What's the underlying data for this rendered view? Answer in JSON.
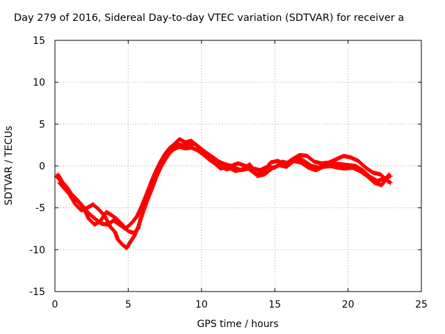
{
  "chart_data": {
    "type": "scatter",
    "title": "Day 279 of 2016, Sidereal Day-to-day VTEC variation (SDTVAR) for receiver a",
    "xlabel": "GPS time / hours",
    "ylabel": "SDTVAR / TECUs",
    "xlim": [
      0,
      25
    ],
    "ylim": [
      -15,
      15
    ],
    "xticks": [
      "0",
      "5",
      "10",
      "15",
      "20",
      "25"
    ],
    "yticks": [
      "15",
      "10",
      "5",
      "0",
      "-5",
      "-10",
      "-15"
    ],
    "xtick_values": [
      0,
      5,
      10,
      15,
      20,
      25
    ],
    "ytick_values": [
      15,
      10,
      5,
      0,
      -5,
      -10,
      -15
    ],
    "grid": true,
    "marker_color": "#ff0000",
    "series": [
      {
        "points": [
          [
            0.1,
            -1.2
          ],
          [
            0.3,
            -1.6
          ],
          [
            0.6,
            -2.3
          ],
          [
            0.9,
            -3.0
          ],
          [
            1.2,
            -3.6
          ],
          [
            1.6,
            -4.3
          ],
          [
            2.0,
            -5.1
          ],
          [
            2.4,
            -5.8
          ],
          [
            2.8,
            -6.4
          ],
          [
            3.2,
            -6.9
          ],
          [
            3.6,
            -7.0
          ],
          [
            4.0,
            -6.5
          ],
          [
            4.4,
            -7.0
          ],
          [
            4.8,
            -7.5
          ],
          [
            5.0,
            -7.2
          ],
          [
            5.3,
            -6.7
          ],
          [
            5.6,
            -6.0
          ],
          [
            5.9,
            -4.9
          ],
          [
            6.2,
            -3.6
          ],
          [
            6.5,
            -2.3
          ],
          [
            6.8,
            -1.0
          ],
          [
            7.1,
            0.1
          ],
          [
            7.4,
            1.0
          ],
          [
            7.7,
            1.8
          ],
          [
            8.0,
            2.3
          ],
          [
            8.4,
            2.6
          ],
          [
            8.8,
            2.4
          ],
          [
            9.2,
            2.7
          ],
          [
            9.6,
            2.6
          ],
          [
            10.0,
            2.0
          ],
          [
            10.4,
            1.5
          ],
          [
            10.8,
            1.0
          ],
          [
            11.2,
            0.5
          ],
          [
            11.6,
            0.2
          ],
          [
            12.0,
            0.0
          ],
          [
            12.5,
            0.3
          ],
          [
            13.0,
            0.0
          ],
          [
            13.5,
            -0.3
          ],
          [
            14.0,
            -0.5
          ],
          [
            14.5,
            -0.1
          ],
          [
            15.0,
            -0.2
          ],
          [
            15.5,
            0.5
          ],
          [
            16.0,
            0.3
          ],
          [
            16.5,
            1.0
          ],
          [
            17.0,
            0.6
          ],
          [
            17.5,
            0.0
          ],
          [
            18.0,
            -0.2
          ],
          [
            18.5,
            0.1
          ],
          [
            19.0,
            0.3
          ],
          [
            19.5,
            0.2
          ],
          [
            20.0,
            0.1
          ],
          [
            20.5,
            0.0
          ],
          [
            21.0,
            -0.5
          ],
          [
            21.5,
            -1.3
          ],
          [
            22.0,
            -1.8
          ],
          [
            22.5,
            -1.5
          ],
          [
            22.9,
            -1.2
          ]
        ]
      },
      {
        "points": [
          [
            0.2,
            -1.0
          ],
          [
            0.5,
            -1.9
          ],
          [
            0.8,
            -2.5
          ],
          [
            1.1,
            -3.3
          ],
          [
            1.5,
            -4.0
          ],
          [
            1.9,
            -4.8
          ],
          [
            2.3,
            -6.3
          ],
          [
            2.7,
            -7.0
          ],
          [
            3.1,
            -6.6
          ],
          [
            3.5,
            -5.5
          ],
          [
            3.8,
            -5.8
          ],
          [
            4.2,
            -6.3
          ],
          [
            4.6,
            -7.0
          ],
          [
            5.0,
            -7.8
          ],
          [
            5.4,
            -8.0
          ],
          [
            5.7,
            -7.4
          ],
          [
            6.0,
            -4.8
          ],
          [
            6.3,
            -3.2
          ],
          [
            6.6,
            -1.8
          ],
          [
            6.9,
            -0.6
          ],
          [
            7.2,
            0.5
          ],
          [
            7.5,
            1.4
          ],
          [
            7.8,
            2.1
          ],
          [
            8.2,
            2.7
          ],
          [
            8.5,
            3.2
          ],
          [
            8.9,
            2.8
          ],
          [
            9.3,
            3.0
          ],
          [
            9.7,
            2.4
          ],
          [
            10.1,
            1.7
          ],
          [
            10.5,
            1.2
          ],
          [
            10.9,
            0.6
          ],
          [
            11.3,
            0.0
          ],
          [
            11.7,
            -0.4
          ],
          [
            12.2,
            -0.2
          ],
          [
            12.7,
            -0.5
          ],
          [
            13.2,
            -0.3
          ],
          [
            13.7,
            -1.0
          ],
          [
            14.2,
            -0.8
          ],
          [
            14.7,
            0.4
          ],
          [
            15.2,
            0.6
          ],
          [
            15.7,
            0.2
          ],
          [
            16.2,
            0.8
          ],
          [
            16.7,
            1.3
          ],
          [
            17.2,
            1.2
          ],
          [
            17.7,
            0.5
          ],
          [
            18.2,
            0.3
          ],
          [
            18.7,
            0.4
          ],
          [
            19.2,
            0.8
          ],
          [
            19.7,
            1.2
          ],
          [
            20.2,
            1.0
          ],
          [
            20.7,
            0.6
          ],
          [
            21.2,
            -0.2
          ],
          [
            21.7,
            -0.8
          ],
          [
            22.2,
            -1.0
          ],
          [
            22.7,
            -1.8
          ],
          [
            22.9,
            -2.0
          ]
        ]
      },
      {
        "points": [
          [
            0.3,
            -2.0
          ],
          [
            0.7,
            -2.8
          ],
          [
            1.0,
            -3.4
          ],
          [
            1.4,
            -4.6
          ],
          [
            1.8,
            -5.3
          ],
          [
            2.2,
            -5.0
          ],
          [
            2.6,
            -4.6
          ],
          [
            3.0,
            -5.2
          ],
          [
            3.4,
            -6.0
          ],
          [
            3.8,
            -7.3
          ],
          [
            4.1,
            -7.9
          ],
          [
            4.3,
            -8.8
          ],
          [
            4.6,
            -9.4
          ],
          [
            4.9,
            -9.8
          ],
          [
            5.1,
            -9.2
          ],
          [
            5.4,
            -8.4
          ],
          [
            5.7,
            -7.2
          ],
          [
            6.0,
            -5.6
          ],
          [
            6.3,
            -4.1
          ],
          [
            6.6,
            -2.8
          ],
          [
            6.9,
            -1.4
          ],
          [
            7.2,
            -0.2
          ],
          [
            7.5,
            0.7
          ],
          [
            7.8,
            1.5
          ],
          [
            8.1,
            2.0
          ],
          [
            8.5,
            2.3
          ],
          [
            8.9,
            2.1
          ],
          [
            9.3,
            2.2
          ],
          [
            9.7,
            1.9
          ],
          [
            10.1,
            1.4
          ],
          [
            10.5,
            0.8
          ],
          [
            10.9,
            0.3
          ],
          [
            11.3,
            -0.3
          ],
          [
            11.8,
            -0.1
          ],
          [
            12.3,
            -0.6
          ],
          [
            12.8,
            -0.4
          ],
          [
            13.3,
            0.2
          ],
          [
            13.8,
            -1.2
          ],
          [
            14.3,
            -1.0
          ],
          [
            14.8,
            -0.3
          ],
          [
            15.3,
            0.1
          ],
          [
            15.8,
            -0.1
          ],
          [
            16.3,
            0.6
          ],
          [
            16.8,
            0.4
          ],
          [
            17.3,
            -0.2
          ],
          [
            17.8,
            -0.5
          ],
          [
            18.3,
            -0.1
          ],
          [
            18.8,
            0.0
          ],
          [
            19.3,
            -0.2
          ],
          [
            19.8,
            -0.3
          ],
          [
            20.3,
            -0.2
          ],
          [
            20.8,
            -0.6
          ],
          [
            21.3,
            -1.2
          ],
          [
            21.8,
            -2.0
          ],
          [
            22.3,
            -2.3
          ],
          [
            22.8,
            -1.0
          ]
        ]
      }
    ]
  }
}
